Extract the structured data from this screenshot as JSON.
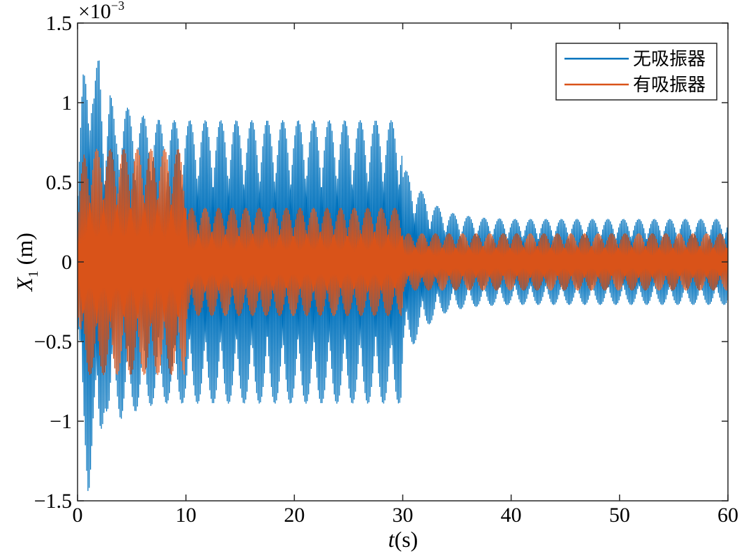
{
  "chart_data": {
    "type": "line",
    "xlabel": "t(s)",
    "xlabel_italic_part": "t",
    "xlabel_rest": "(s)",
    "ylabel_var": "X",
    "ylabel_sub": "1",
    "ylabel_unit": " (m)",
    "y_exponent_base": "×10",
    "y_exponent_power": "−3",
    "xlim": [
      0,
      60
    ],
    "ylim": [
      -1.5,
      1.5
    ],
    "y_scale_factor": 0.001,
    "x_ticks": [
      0,
      10,
      20,
      30,
      40,
      50,
      60
    ],
    "x_tick_labels": [
      "0",
      "10",
      "20",
      "30",
      "40",
      "50",
      "60"
    ],
    "y_ticks": [
      -1.5,
      -1,
      -0.5,
      0,
      0.5,
      1,
      1.5
    ],
    "y_tick_labels": [
      "−1.5",
      "−1",
      "−0.5",
      "0",
      "0.5",
      "1",
      "1.5"
    ],
    "grid": false,
    "legend_placement": "top-right",
    "series": [
      {
        "name": "无吸振器",
        "color": "#0072BD",
        "envelope_x": [
          0,
          0.5,
          1.0,
          1.5,
          2.0,
          2.5,
          3.0,
          3.5,
          4.0,
          5.0,
          6.0,
          7.0,
          8.0,
          10.0,
          20.0,
          29.9,
          30.0,
          31.0,
          32.0,
          33.0,
          34.0,
          35.0,
          37.0,
          40.0,
          50.0,
          60.0
        ],
        "envelope_y": [
          0.4,
          1.2,
          1.48,
          1.1,
          1.33,
          0.9,
          1.1,
          0.85,
          1.0,
          0.95,
          0.92,
          0.9,
          0.89,
          0.89,
          0.89,
          0.89,
          0.6,
          0.52,
          0.42,
          0.36,
          0.32,
          0.3,
          0.28,
          0.27,
          0.27,
          0.27
        ]
      },
      {
        "name": "有吸振器",
        "color": "#D95319",
        "envelope_x": [
          0,
          0.3,
          0.6,
          1.0,
          2.0,
          9.9,
          10.1,
          20.0,
          29.9,
          30.1,
          40.0,
          60.0
        ],
        "envelope_y": [
          0.3,
          0.55,
          0.68,
          0.71,
          0.71,
          0.71,
          0.34,
          0.34,
          0.34,
          0.18,
          0.18,
          0.18
        ]
      }
    ]
  }
}
